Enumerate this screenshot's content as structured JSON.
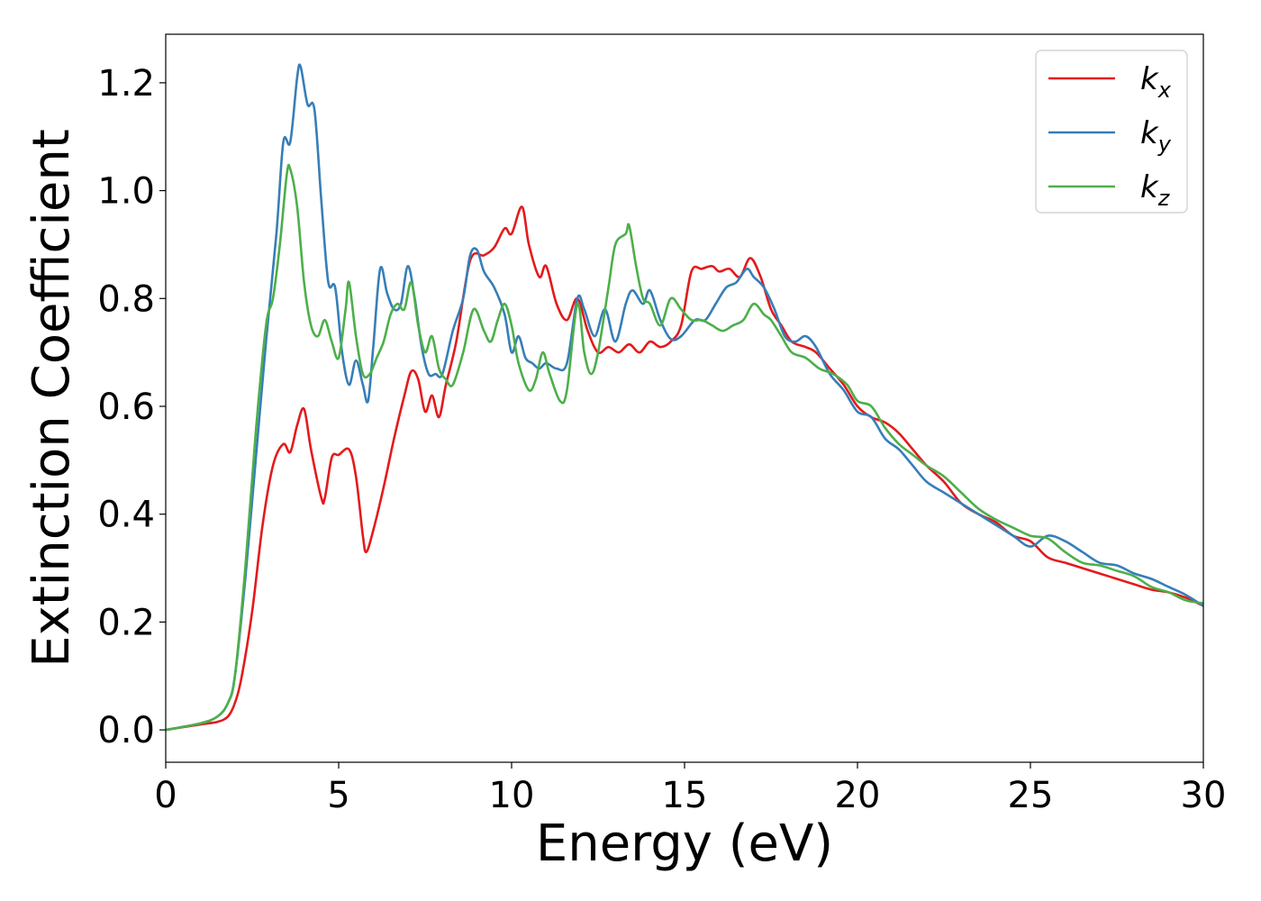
{
  "chart_data": {
    "type": "line",
    "title": "",
    "xlabel": "Energy (eV)",
    "ylabel": "Extinction Coefficient",
    "xlim": [
      0,
      30
    ],
    "ylim": [
      -0.06,
      1.29
    ],
    "xticks": [
      0,
      5,
      10,
      15,
      20,
      25,
      30
    ],
    "yticks": [
      "0.0",
      "0.2",
      "0.4",
      "0.6",
      "0.8",
      "1.0",
      "1.2"
    ],
    "grid": false,
    "legend_position": "top-right",
    "series": [
      {
        "name": "kx",
        "label_base": "k",
        "label_sub": "x",
        "color": "#e41a1c",
        "points": [
          [
            0,
            0
          ],
          [
            1,
            0.01
          ],
          [
            1.5,
            0.015
          ],
          [
            1.8,
            0.025
          ],
          [
            2.0,
            0.05
          ],
          [
            2.2,
            0.1
          ],
          [
            2.5,
            0.22
          ],
          [
            2.8,
            0.38
          ],
          [
            3.1,
            0.49
          ],
          [
            3.4,
            0.53
          ],
          [
            3.6,
            0.515
          ],
          [
            3.8,
            0.565
          ],
          [
            4.0,
            0.595
          ],
          [
            4.2,
            0.52
          ],
          [
            4.5,
            0.43
          ],
          [
            4.6,
            0.43
          ],
          [
            4.8,
            0.505
          ],
          [
            5.0,
            0.51
          ],
          [
            5.3,
            0.52
          ],
          [
            5.5,
            0.47
          ],
          [
            5.7,
            0.36
          ],
          [
            5.8,
            0.33
          ],
          [
            6.0,
            0.37
          ],
          [
            6.3,
            0.45
          ],
          [
            6.6,
            0.54
          ],
          [
            6.9,
            0.62
          ],
          [
            7.1,
            0.665
          ],
          [
            7.3,
            0.65
          ],
          [
            7.5,
            0.59
          ],
          [
            7.7,
            0.62
          ],
          [
            7.9,
            0.58
          ],
          [
            8.1,
            0.64
          ],
          [
            8.4,
            0.72
          ],
          [
            8.8,
            0.87
          ],
          [
            9.2,
            0.88
          ],
          [
            9.5,
            0.895
          ],
          [
            9.8,
            0.93
          ],
          [
            10.0,
            0.92
          ],
          [
            10.3,
            0.97
          ],
          [
            10.5,
            0.9
          ],
          [
            10.8,
            0.84
          ],
          [
            11.0,
            0.86
          ],
          [
            11.3,
            0.79
          ],
          [
            11.6,
            0.76
          ],
          [
            11.9,
            0.8
          ],
          [
            12.2,
            0.74
          ],
          [
            12.5,
            0.7
          ],
          [
            12.8,
            0.71
          ],
          [
            13.1,
            0.7
          ],
          [
            13.4,
            0.715
          ],
          [
            13.7,
            0.7
          ],
          [
            14.0,
            0.72
          ],
          [
            14.3,
            0.71
          ],
          [
            14.6,
            0.72
          ],
          [
            14.9,
            0.75
          ],
          [
            15.2,
            0.85
          ],
          [
            15.5,
            0.855
          ],
          [
            15.8,
            0.86
          ],
          [
            16.0,
            0.85
          ],
          [
            16.3,
            0.855
          ],
          [
            16.6,
            0.84
          ],
          [
            16.9,
            0.875
          ],
          [
            17.2,
            0.84
          ],
          [
            17.5,
            0.78
          ],
          [
            17.8,
            0.75
          ],
          [
            18.1,
            0.72
          ],
          [
            18.5,
            0.71
          ],
          [
            18.8,
            0.7
          ],
          [
            19.2,
            0.67
          ],
          [
            19.6,
            0.64
          ],
          [
            20.0,
            0.6
          ],
          [
            20.4,
            0.58
          ],
          [
            20.8,
            0.57
          ],
          [
            21.2,
            0.55
          ],
          [
            21.6,
            0.52
          ],
          [
            22.0,
            0.49
          ],
          [
            22.5,
            0.46
          ],
          [
            23.0,
            0.42
          ],
          [
            23.5,
            0.4
          ],
          [
            24.0,
            0.385
          ],
          [
            24.5,
            0.36
          ],
          [
            25.0,
            0.35
          ],
          [
            25.5,
            0.32
          ],
          [
            26.0,
            0.31
          ],
          [
            26.5,
            0.3
          ],
          [
            27.0,
            0.29
          ],
          [
            27.5,
            0.28
          ],
          [
            28.0,
            0.27
          ],
          [
            28.5,
            0.26
          ],
          [
            29.0,
            0.255
          ],
          [
            29.5,
            0.245
          ],
          [
            30.0,
            0.23
          ]
        ]
      },
      {
        "name": "ky",
        "label_base": "k",
        "label_sub": "y",
        "color": "#377eb8",
        "points": [
          [
            0,
            0
          ],
          [
            1,
            0.012
          ],
          [
            1.5,
            0.025
          ],
          [
            1.8,
            0.05
          ],
          [
            2.0,
            0.1
          ],
          [
            2.3,
            0.28
          ],
          [
            2.6,
            0.5
          ],
          [
            2.9,
            0.72
          ],
          [
            3.2,
            0.92
          ],
          [
            3.4,
            1.09
          ],
          [
            3.6,
            1.09
          ],
          [
            3.8,
            1.21
          ],
          [
            3.9,
            1.23
          ],
          [
            4.1,
            1.16
          ],
          [
            4.3,
            1.15
          ],
          [
            4.5,
            0.98
          ],
          [
            4.7,
            0.83
          ],
          [
            4.9,
            0.82
          ],
          [
            5.1,
            0.7
          ],
          [
            5.3,
            0.64
          ],
          [
            5.5,
            0.685
          ],
          [
            5.7,
            0.64
          ],
          [
            5.85,
            0.61
          ],
          [
            6.0,
            0.71
          ],
          [
            6.2,
            0.855
          ],
          [
            6.4,
            0.81
          ],
          [
            6.6,
            0.78
          ],
          [
            6.8,
            0.79
          ],
          [
            7.0,
            0.86
          ],
          [
            7.2,
            0.8
          ],
          [
            7.4,
            0.71
          ],
          [
            7.6,
            0.66
          ],
          [
            7.8,
            0.66
          ],
          [
            8.0,
            0.66
          ],
          [
            8.3,
            0.74
          ],
          [
            8.6,
            0.8
          ],
          [
            8.8,
            0.88
          ],
          [
            9.0,
            0.89
          ],
          [
            9.2,
            0.85
          ],
          [
            9.5,
            0.82
          ],
          [
            9.8,
            0.77
          ],
          [
            10.0,
            0.7
          ],
          [
            10.2,
            0.73
          ],
          [
            10.4,
            0.69
          ],
          [
            10.6,
            0.68
          ],
          [
            10.8,
            0.67
          ],
          [
            11.0,
            0.68
          ],
          [
            11.3,
            0.67
          ],
          [
            11.6,
            0.68
          ],
          [
            11.9,
            0.8
          ],
          [
            12.1,
            0.78
          ],
          [
            12.4,
            0.73
          ],
          [
            12.7,
            0.78
          ],
          [
            13.0,
            0.72
          ],
          [
            13.3,
            0.79
          ],
          [
            13.5,
            0.815
          ],
          [
            13.8,
            0.79
          ],
          [
            14.0,
            0.815
          ],
          [
            14.3,
            0.76
          ],
          [
            14.6,
            0.725
          ],
          [
            14.9,
            0.73
          ],
          [
            15.3,
            0.76
          ],
          [
            15.6,
            0.76
          ],
          [
            15.9,
            0.79
          ],
          [
            16.2,
            0.82
          ],
          [
            16.5,
            0.83
          ],
          [
            16.8,
            0.855
          ],
          [
            17.0,
            0.84
          ],
          [
            17.3,
            0.82
          ],
          [
            17.6,
            0.78
          ],
          [
            17.9,
            0.73
          ],
          [
            18.2,
            0.72
          ],
          [
            18.5,
            0.73
          ],
          [
            18.8,
            0.71
          ],
          [
            19.2,
            0.66
          ],
          [
            19.6,
            0.63
          ],
          [
            20.0,
            0.59
          ],
          [
            20.4,
            0.58
          ],
          [
            20.8,
            0.54
          ],
          [
            21.2,
            0.52
          ],
          [
            21.6,
            0.49
          ],
          [
            22.0,
            0.46
          ],
          [
            22.5,
            0.44
          ],
          [
            23.0,
            0.42
          ],
          [
            23.5,
            0.4
          ],
          [
            24.0,
            0.38
          ],
          [
            24.5,
            0.36
          ],
          [
            25.0,
            0.34
          ],
          [
            25.5,
            0.36
          ],
          [
            26.0,
            0.35
          ],
          [
            26.5,
            0.33
          ],
          [
            27.0,
            0.31
          ],
          [
            27.5,
            0.305
          ],
          [
            28.0,
            0.29
          ],
          [
            28.5,
            0.28
          ],
          [
            29.0,
            0.265
          ],
          [
            29.5,
            0.25
          ],
          [
            30.0,
            0.23
          ]
        ]
      },
      {
        "name": "kz",
        "label_base": "k",
        "label_sub": "z",
        "color": "#4daf4a",
        "points": [
          [
            0,
            0
          ],
          [
            1,
            0.012
          ],
          [
            1.5,
            0.025
          ],
          [
            1.8,
            0.05
          ],
          [
            2.0,
            0.1
          ],
          [
            2.3,
            0.3
          ],
          [
            2.6,
            0.55
          ],
          [
            2.9,
            0.75
          ],
          [
            3.1,
            0.8
          ],
          [
            3.3,
            0.9
          ],
          [
            3.5,
            1.03
          ],
          [
            3.6,
            1.04
          ],
          [
            3.8,
            0.97
          ],
          [
            4.0,
            0.83
          ],
          [
            4.2,
            0.75
          ],
          [
            4.4,
            0.73
          ],
          [
            4.6,
            0.76
          ],
          [
            4.8,
            0.72
          ],
          [
            5.0,
            0.69
          ],
          [
            5.2,
            0.78
          ],
          [
            5.3,
            0.83
          ],
          [
            5.5,
            0.73
          ],
          [
            5.7,
            0.66
          ],
          [
            5.9,
            0.66
          ],
          [
            6.1,
            0.69
          ],
          [
            6.3,
            0.72
          ],
          [
            6.5,
            0.77
          ],
          [
            6.7,
            0.79
          ],
          [
            6.9,
            0.78
          ],
          [
            7.1,
            0.83
          ],
          [
            7.3,
            0.75
          ],
          [
            7.5,
            0.7
          ],
          [
            7.7,
            0.73
          ],
          [
            7.9,
            0.67
          ],
          [
            8.1,
            0.65
          ],
          [
            8.3,
            0.64
          ],
          [
            8.6,
            0.7
          ],
          [
            8.9,
            0.78
          ],
          [
            9.2,
            0.74
          ],
          [
            9.4,
            0.72
          ],
          [
            9.6,
            0.76
          ],
          [
            9.8,
            0.79
          ],
          [
            10.0,
            0.75
          ],
          [
            10.2,
            0.68
          ],
          [
            10.5,
            0.63
          ],
          [
            10.7,
            0.65
          ],
          [
            10.9,
            0.7
          ],
          [
            11.1,
            0.66
          ],
          [
            11.4,
            0.61
          ],
          [
            11.6,
            0.63
          ],
          [
            11.9,
            0.79
          ],
          [
            12.1,
            0.7
          ],
          [
            12.3,
            0.66
          ],
          [
            12.5,
            0.7
          ],
          [
            12.8,
            0.82
          ],
          [
            13.0,
            0.9
          ],
          [
            13.3,
            0.92
          ],
          [
            13.4,
            0.935
          ],
          [
            13.6,
            0.86
          ],
          [
            13.8,
            0.8
          ],
          [
            14.0,
            0.79
          ],
          [
            14.3,
            0.75
          ],
          [
            14.6,
            0.8
          ],
          [
            14.9,
            0.78
          ],
          [
            15.2,
            0.76
          ],
          [
            15.5,
            0.76
          ],
          [
            15.8,
            0.75
          ],
          [
            16.1,
            0.74
          ],
          [
            16.4,
            0.75
          ],
          [
            16.7,
            0.76
          ],
          [
            17.0,
            0.79
          ],
          [
            17.3,
            0.77
          ],
          [
            17.5,
            0.76
          ],
          [
            17.8,
            0.73
          ],
          [
            18.1,
            0.7
          ],
          [
            18.5,
            0.69
          ],
          [
            18.9,
            0.67
          ],
          [
            19.3,
            0.66
          ],
          [
            19.7,
            0.64
          ],
          [
            20.0,
            0.61
          ],
          [
            20.4,
            0.6
          ],
          [
            20.8,
            0.56
          ],
          [
            21.2,
            0.53
          ],
          [
            21.6,
            0.51
          ],
          [
            22.0,
            0.49
          ],
          [
            22.5,
            0.47
          ],
          [
            23.0,
            0.44
          ],
          [
            23.5,
            0.41
          ],
          [
            24.0,
            0.39
          ],
          [
            24.5,
            0.375
          ],
          [
            25.0,
            0.36
          ],
          [
            25.5,
            0.355
          ],
          [
            26.0,
            0.33
          ],
          [
            26.5,
            0.31
          ],
          [
            27.0,
            0.305
          ],
          [
            27.5,
            0.295
          ],
          [
            28.0,
            0.285
          ],
          [
            28.5,
            0.265
          ],
          [
            29.0,
            0.255
          ],
          [
            29.5,
            0.24
          ],
          [
            30.0,
            0.235
          ]
        ]
      }
    ]
  }
}
